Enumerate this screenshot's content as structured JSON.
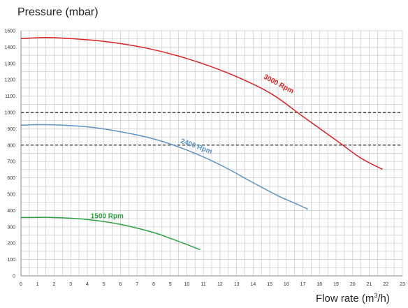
{
  "chart_data": {
    "type": "line",
    "ylabel": "Pressure (mbar)",
    "xlabel": {
      "prefix": "Flow rate (m",
      "sup": "3",
      "suffix": "/h)"
    },
    "xlim": [
      0,
      23
    ],
    "ylim": [
      0,
      1500
    ],
    "x_ticks": [
      0,
      1,
      2,
      3,
      4,
      5,
      6,
      7,
      8,
      9,
      10,
      11,
      12,
      13,
      14,
      15,
      16,
      17,
      18,
      19,
      20,
      21,
      22,
      23
    ],
    "y_ticks": [
      0,
      100,
      200,
      300,
      400,
      500,
      600,
      700,
      800,
      900,
      1000,
      1100,
      1200,
      1300,
      1400,
      1500
    ],
    "grid": true,
    "reference_lines": [
      1000,
      800
    ],
    "series": [
      {
        "name": "3000 Rpm",
        "color": "#e02020",
        "x": [
          0,
          1.2,
          2.5,
          5,
          7.5,
          10,
          12.5,
          15,
          17,
          19,
          20.5,
          21.8
        ],
        "y": [
          1452,
          1458,
          1455,
          1435,
          1395,
          1330,
          1240,
          1120,
          975,
          830,
          720,
          652
        ],
        "label_pos": [
          14.6,
          1210
        ],
        "label_angle": 28
      },
      {
        "name": "2400 Rpm",
        "color": "#5b93c9",
        "x": [
          0,
          1,
          2,
          4,
          6,
          8,
          10,
          12,
          14,
          15.5,
          16.5,
          17.3
        ],
        "y": [
          922,
          925,
          924,
          912,
          882,
          838,
          770,
          680,
          570,
          490,
          445,
          408
        ],
        "label_pos": [
          9.6,
          815
        ],
        "label_angle": 20
      },
      {
        "name": "1500 Rpm",
        "color": "#2ca040",
        "x": [
          0,
          1,
          2,
          4,
          6,
          8,
          9,
          10,
          10.8
        ],
        "y": [
          357,
          358,
          357,
          345,
          315,
          265,
          230,
          192,
          160
        ],
        "label_pos": [
          4.2,
          352
        ],
        "label_angle": 0
      }
    ]
  }
}
